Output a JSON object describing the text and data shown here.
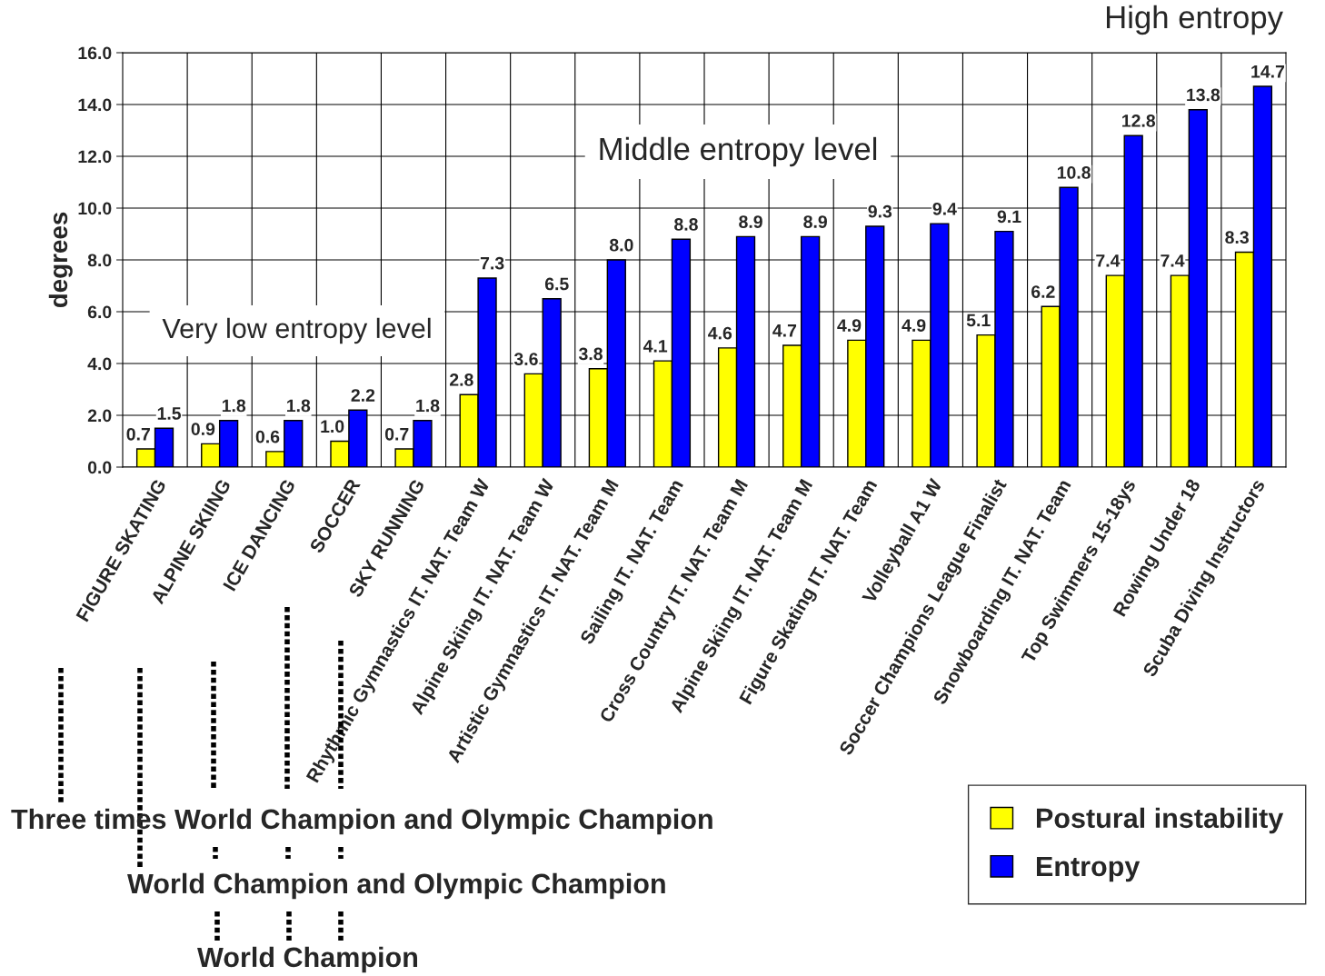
{
  "chart_data": {
    "type": "bar",
    "ylabel": "degrees",
    "categories": [
      "FIGURE SKATING",
      "ALPINE SKIING",
      "ICE DANCING",
      "SOCCER",
      "SKY RUNNING",
      "Rhythmic Gymnastics IT. NAT. Team W",
      "Alpine Skiing IT. NAT. Team W",
      "Artistic Gymnastics IT. NAT. Team M",
      "Sailing IT. NAT. Team",
      "Cross Country IT. NAT. Team M",
      "Alpine Skiing IT. NAT. Team M",
      "Figure Skating IT. NAT. Team",
      "Volleyball A1 W",
      "Soccer Champions League Finalist",
      "Snowboarding IT. NAT. Team",
      "Top Swimmers 15-18ys",
      "Rowing Under 18",
      "Scuba Diving Instructors"
    ],
    "series": [
      {
        "name": "Postural instability",
        "color": "#ffff00",
        "values": [
          0.7,
          0.9,
          0.6,
          1.0,
          0.7,
          2.8,
          3.6,
          3.8,
          4.1,
          4.6,
          4.7,
          4.9,
          4.9,
          5.1,
          6.2,
          7.4,
          7.4,
          8.3
        ],
        "value_labels": [
          "0.7",
          "0.9",
          "0.6",
          "1.0",
          "0.7",
          "2.8",
          "3.6",
          "3.8",
          "4.1",
          "4.6",
          "4.7",
          "4.9",
          "4.9",
          "5.1",
          "6.2",
          "7.4",
          "7.4",
          "8.3"
        ]
      },
      {
        "name": "Entropy",
        "color": "#0000ff",
        "values": [
          1.5,
          1.8,
          1.8,
          2.2,
          1.8,
          7.3,
          6.5,
          8.0,
          8.8,
          8.9,
          8.9,
          9.3,
          9.4,
          9.1,
          10.8,
          12.8,
          13.8,
          14.7
        ],
        "value_labels": [
          "1.5",
          "1.8",
          "1.8",
          "2.2",
          "1.8",
          "7.3",
          "6.5",
          "8.0",
          "8.8",
          "8.9",
          "8.9",
          "9.3",
          "9.4",
          "9.1",
          "10.8",
          "12.8",
          "13.8",
          "14.7"
        ]
      }
    ],
    "ylim": [
      0,
      16
    ],
    "yticks": [
      {
        "value": 0,
        "label": "0.0"
      },
      {
        "value": 2,
        "label": "2.0"
      },
      {
        "value": 4,
        "label": "4.0"
      },
      {
        "value": 6,
        "label": "6.0"
      },
      {
        "value": 8,
        "label": "8.0"
      },
      {
        "value": 10,
        "label": "10.0"
      },
      {
        "value": 12,
        "label": "12.0"
      },
      {
        "value": 14,
        "label": "14.0"
      },
      {
        "value": 16,
        "label": "16.0"
      }
    ],
    "grid": true,
    "legend": "bottom right",
    "annotations": [
      "High entropy",
      "Middle entropy level",
      "Very low entropy level",
      "Three times World Champion and Olympic Champion",
      "World Champion and Olympic Champion",
      "World Champion"
    ]
  }
}
